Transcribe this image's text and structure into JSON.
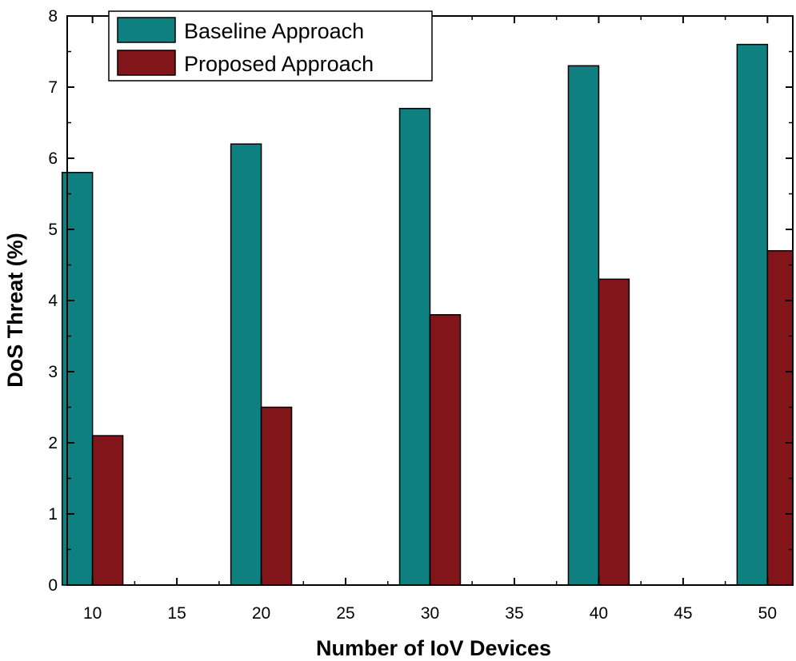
{
  "chart_data": {
    "type": "bar",
    "title": "",
    "xlabel": "Number of IoV Devices",
    "ylabel": "DoS Threat (%)",
    "categories": [
      10,
      20,
      30,
      40,
      50
    ],
    "series": [
      {
        "name": "Baseline Approach",
        "color": "#0e8080",
        "values": [
          5.8,
          6.2,
          6.7,
          7.3,
          7.6
        ]
      },
      {
        "name": "Proposed Approach",
        "color": "#821519",
        "values": [
          2.1,
          2.5,
          3.8,
          4.3,
          4.7
        ]
      }
    ],
    "xlim": [
      8.5,
      51.5
    ],
    "ylim": [
      0,
      8
    ],
    "xticks": [
      10,
      15,
      20,
      25,
      30,
      35,
      40,
      45,
      50
    ],
    "yticks": [
      0,
      1,
      2,
      3,
      4,
      5,
      6,
      7,
      8
    ],
    "bar_width": 1.8,
    "grid": false,
    "legend": "top-left"
  }
}
